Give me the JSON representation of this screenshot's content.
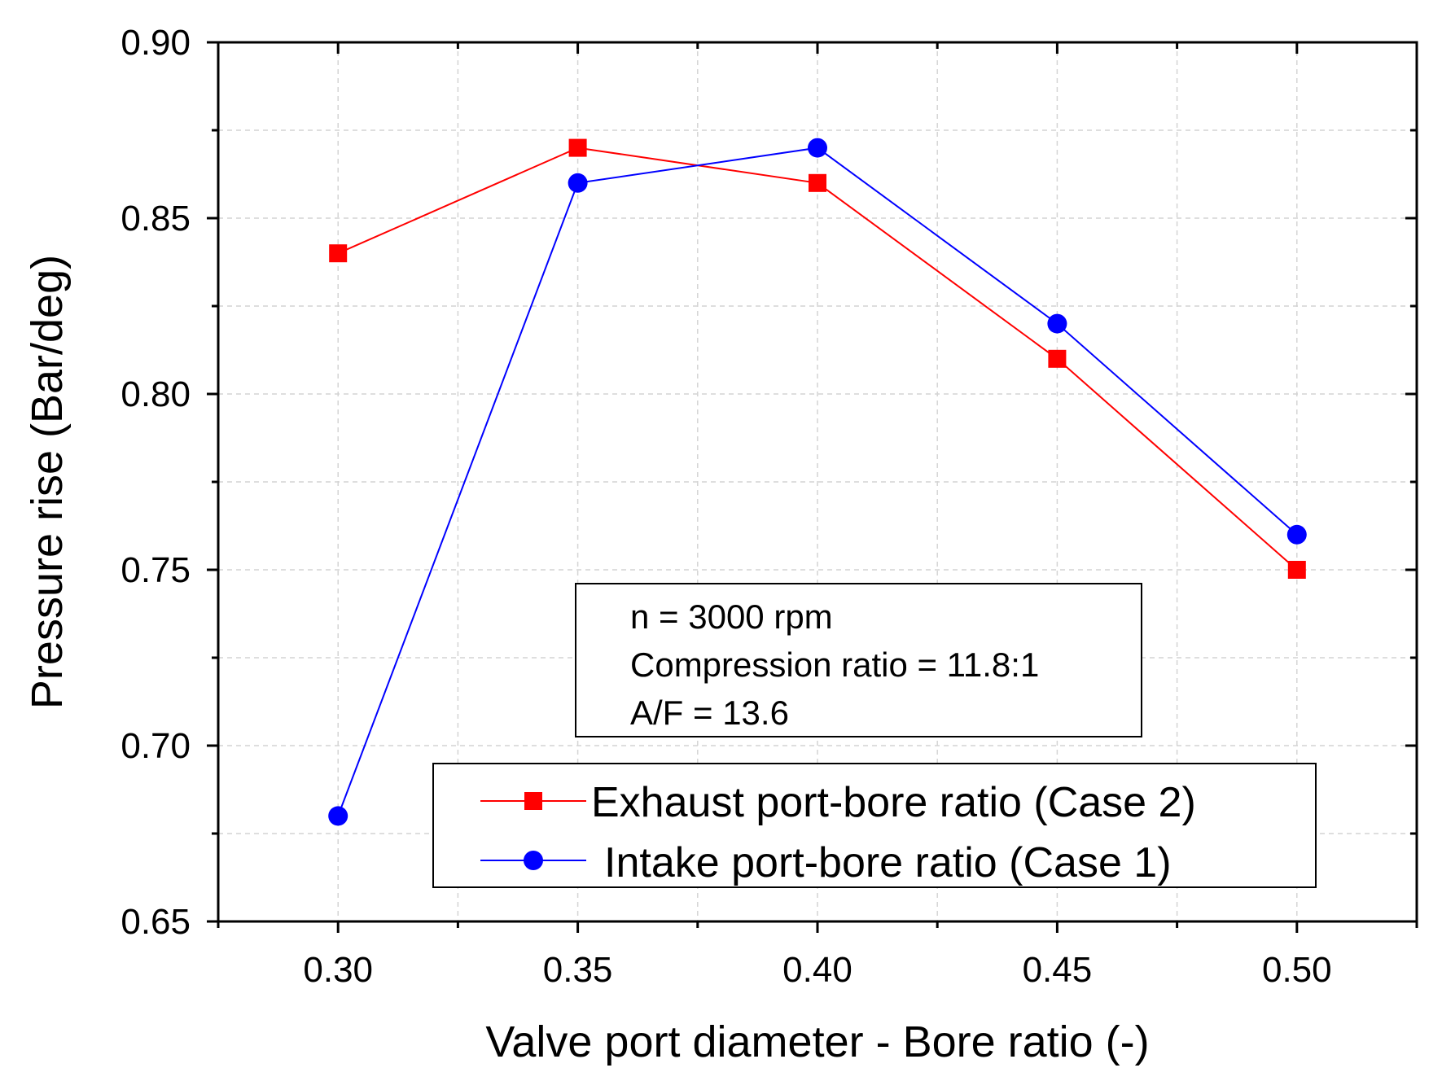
{
  "chart_data": {
    "type": "line",
    "title": "",
    "xlabel": "Valve port diameter - Bore ratio (-)",
    "ylabel": "Pressure rise (Bar/deg)",
    "xlim": [
      0.275,
      0.525
    ],
    "ylim": [
      0.65,
      0.9
    ],
    "x_ticks": [
      "0.30",
      "0.35",
      "0.40",
      "0.45",
      "0.50"
    ],
    "x_tick_values": [
      0.3,
      0.35,
      0.4,
      0.45,
      0.5
    ],
    "y_ticks": [
      "0.65",
      "0.70",
      "0.75",
      "0.80",
      "0.85",
      "0.90"
    ],
    "y_tick_values": [
      0.65,
      0.7,
      0.75,
      0.8,
      0.85,
      0.9
    ],
    "grid": true,
    "x": [
      0.3,
      0.35,
      0.4,
      0.45,
      0.5
    ],
    "series": [
      {
        "name": "Exhaust port-bore ratio (Case 2)",
        "color": "#ff0000",
        "marker": "square",
        "values": [
          0.84,
          0.87,
          0.86,
          0.81,
          0.75
        ]
      },
      {
        "name": "Intake port-bore ratio (Case 1)",
        "color": "#0000ff",
        "marker": "circle",
        "values": [
          0.68,
          0.86,
          0.87,
          0.82,
          0.76
        ]
      }
    ],
    "annotation": [
      "n = 3000 rpm",
      "Compression ratio = 11.8:1",
      "A/F = 13.6"
    ],
    "legend_position": "bottom-right"
  }
}
